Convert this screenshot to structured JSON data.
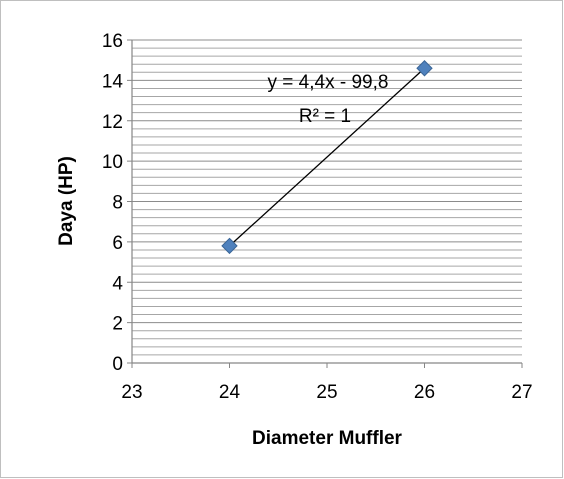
{
  "chart_data": {
    "type": "scatter",
    "title": "",
    "xlabel": "Diameter Muffler",
    "ylabel": "Daya (HP)",
    "xlim": [
      23,
      27
    ],
    "ylim": [
      0,
      16
    ],
    "xticks": [
      23,
      24,
      25,
      26,
      27
    ],
    "yticks": [
      0,
      2,
      4,
      6,
      8,
      10,
      12,
      14,
      16
    ],
    "grid": "horizontal major and minor",
    "legend": "none",
    "series": [
      {
        "points": [
          {
            "x": 24,
            "y": 5.8
          },
          {
            "x": 26,
            "y": 14.6
          }
        ],
        "marker": "diamond",
        "color": "#4F81BD"
      }
    ],
    "trendline": {
      "type": "linear",
      "slope": 4.4,
      "intercept": -99.8,
      "x_range": [
        24,
        26
      ],
      "color": "#000000"
    },
    "annotations": {
      "equation": "y = 4,4x - 99,8",
      "r_squared": "R² = 1"
    }
  }
}
